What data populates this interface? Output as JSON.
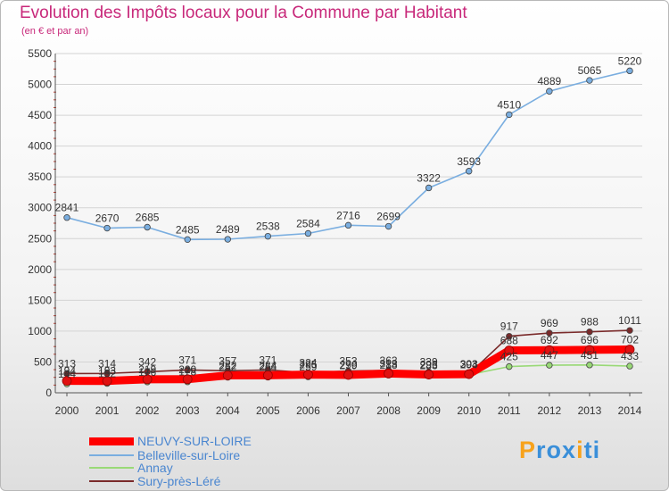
{
  "chart_data": {
    "type": "line",
    "title": "Evolution des Impôts locaux pour la Commune par Habitant",
    "subtitle": "(en € et par an)",
    "x": [
      "2000",
      "2001",
      "2002",
      "2003",
      "2004",
      "2005",
      "2006",
      "2007",
      "2008",
      "2009",
      "2010",
      "2011",
      "2012",
      "2013",
      "2014"
    ],
    "yticks": [
      0,
      500,
      1000,
      1500,
      2000,
      2500,
      3000,
      3500,
      4000,
      4500,
      5000,
      5500
    ],
    "ylim": [
      0,
      5500
    ],
    "series": [
      {
        "name": "NEUVY-SUR-LOIRE",
        "color": "#ff0000",
        "values": [
          194,
          193,
          219,
          220,
          282,
          284,
          295,
          290,
          313,
          296,
          303,
          688,
          692,
          696,
          702
        ],
        "labels": [
          "194",
          "193",
          "219",
          "220",
          "282",
          "284",
          "295",
          "290",
          "313",
          "296",
          "303",
          "688",
          "692",
          "696",
          "702"
        ]
      },
      {
        "name": "Belleville-sur-Loire",
        "color": "#7aaee0",
        "values": [
          2841,
          2670,
          2685,
          2485,
          2489,
          2538,
          2584,
          2716,
          2699,
          3322,
          3593,
          4510,
          4889,
          5065,
          5220
        ],
        "labels": [
          "2841",
          "2670",
          "2685",
          "2485",
          "2489",
          "2538",
          "2584",
          "2716",
          "2699",
          "3322",
          "3593",
          "4510",
          "4889",
          "5065",
          "5220"
        ]
      },
      {
        "name": "Annay",
        "color": "#99d977",
        "values": [
          144,
          152,
          176,
          178,
          252,
          254,
          259,
          279,
          288,
          283,
          294,
          425,
          447,
          451,
          433
        ],
        "labels": [
          "144",
          "152",
          "176",
          "178",
          "252",
          "254",
          "259",
          "279",
          "288",
          "283",
          "294",
          "425",
          "447",
          "451",
          "433"
        ]
      },
      {
        "name": "Sury-près-Léré",
        "color": "#7a2a2a",
        "values": [
          313,
          314,
          342,
          371,
          357,
          371,
          324,
          353,
          363,
          339,
          303,
          917,
          969,
          988,
          1011
        ],
        "labels": [
          "313",
          "314",
          "342",
          "371",
          "357",
          "371",
          "324",
          "353",
          "363",
          "339",
          "303",
          "917",
          "969",
          "988",
          "1011"
        ]
      }
    ]
  },
  "logo": {
    "text": "Proxiti",
    "letters": [
      "P",
      "r",
      "o",
      "x",
      "i",
      "t",
      "i"
    ],
    "colors": [
      "#f7a21b",
      "#3a8fd9",
      "#3a8fd9",
      "#3a8fd9",
      "#f7a21b",
      "#3a8fd9",
      "#3a8fd9"
    ]
  }
}
